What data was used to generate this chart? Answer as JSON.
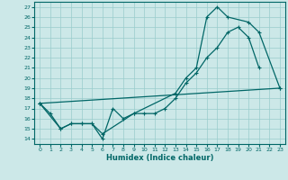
{
  "xlabel": "Humidex (Indice chaleur)",
  "background_color": "#cce8e8",
  "grid_color": "#99cccc",
  "line_color": "#006666",
  "xlim": [
    -0.5,
    23.5
  ],
  "ylim": [
    13.5,
    27.5
  ],
  "xticks": [
    0,
    1,
    2,
    3,
    4,
    5,
    6,
    7,
    8,
    9,
    10,
    11,
    12,
    13,
    14,
    15,
    16,
    17,
    18,
    19,
    20,
    21,
    22,
    23
  ],
  "yticks": [
    14,
    15,
    16,
    17,
    18,
    19,
    20,
    21,
    22,
    23,
    24,
    25,
    26,
    27
  ],
  "line1_x": [
    0,
    1,
    2,
    3,
    4,
    5,
    6,
    7,
    8,
    9,
    10,
    11,
    12,
    13,
    14,
    15,
    16,
    17,
    18,
    19,
    20,
    21
  ],
  "line1_y": [
    17.5,
    16.5,
    15.0,
    15.5,
    15.5,
    15.5,
    14.0,
    17.0,
    16.0,
    16.5,
    16.5,
    16.5,
    17.0,
    18.0,
    19.5,
    20.5,
    22.0,
    23.0,
    24.5,
    25.0,
    24.0,
    21.0
  ],
  "line2_x": [
    0,
    23
  ],
  "line2_y": [
    17.5,
    19.0
  ],
  "line3_x": [
    0,
    2,
    3,
    4,
    5,
    6,
    9,
    13,
    14,
    15,
    16,
    17,
    18,
    20,
    21,
    23
  ],
  "line3_y": [
    17.5,
    15.0,
    15.5,
    15.5,
    15.5,
    14.5,
    16.5,
    18.5,
    20.0,
    21.0,
    26.0,
    27.0,
    26.0,
    25.5,
    24.5,
    19.0
  ]
}
